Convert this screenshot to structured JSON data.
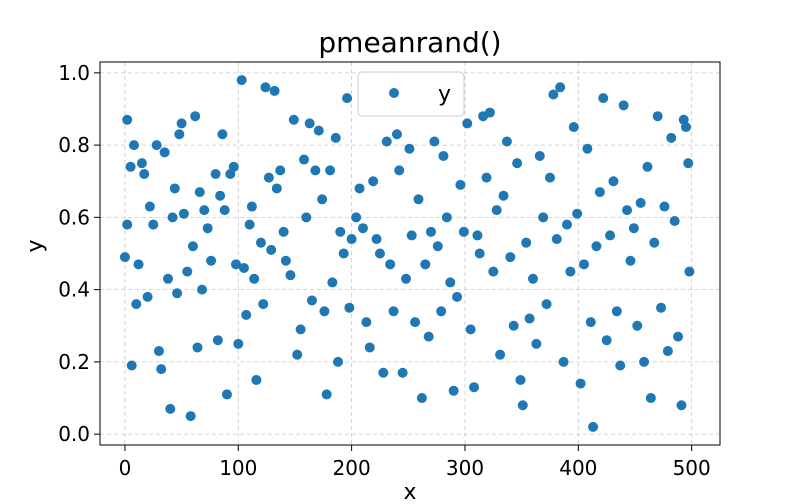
{
  "chart_data": {
    "type": "scatter",
    "title": "pmeanrand()",
    "xlabel": "x",
    "ylabel": "y",
    "xlim": [
      -22,
      525
    ],
    "ylim": [
      -0.03,
      1.03
    ],
    "xticks": [
      "0",
      "100",
      "200",
      "300",
      "400",
      "500"
    ],
    "yticks": [
      "0.0",
      "0.2",
      "0.4",
      "0.6",
      "0.8",
      "1.0"
    ],
    "grid": true,
    "legend_position": "top-center",
    "series": [
      {
        "name": "y",
        "color": "#1f77b4",
        "points": [
          [
            0,
            0.49
          ],
          [
            2,
            0.58
          ],
          [
            2,
            0.87
          ],
          [
            5,
            0.74
          ],
          [
            6,
            0.19
          ],
          [
            8,
            0.8
          ],
          [
            10,
            0.36
          ],
          [
            12,
            0.47
          ],
          [
            15,
            0.75
          ],
          [
            17,
            0.72
          ],
          [
            20,
            0.38
          ],
          [
            22,
            0.63
          ],
          [
            25,
            0.58
          ],
          [
            28,
            0.8
          ],
          [
            30,
            0.23
          ],
          [
            32,
            0.18
          ],
          [
            35,
            0.78
          ],
          [
            38,
            0.43
          ],
          [
            40,
            0.07
          ],
          [
            42,
            0.6
          ],
          [
            44,
            0.68
          ],
          [
            46,
            0.39
          ],
          [
            48,
            0.83
          ],
          [
            50,
            0.86
          ],
          [
            52,
            0.61
          ],
          [
            55,
            0.45
          ],
          [
            58,
            0.05
          ],
          [
            60,
            0.52
          ],
          [
            62,
            0.88
          ],
          [
            64,
            0.24
          ],
          [
            66,
            0.67
          ],
          [
            68,
            0.4
          ],
          [
            70,
            0.62
          ],
          [
            73,
            0.57
          ],
          [
            76,
            0.48
          ],
          [
            80,
            0.72
          ],
          [
            82,
            0.26
          ],
          [
            84,
            0.66
          ],
          [
            86,
            0.83
          ],
          [
            88,
            0.62
          ],
          [
            90,
            0.11
          ],
          [
            93,
            0.72
          ],
          [
            96,
            0.74
          ],
          [
            98,
            0.47
          ],
          [
            100,
            0.25
          ],
          [
            103,
            0.98
          ],
          [
            105,
            0.46
          ],
          [
            107,
            0.33
          ],
          [
            110,
            0.58
          ],
          [
            112,
            0.63
          ],
          [
            114,
            0.43
          ],
          [
            116,
            0.15
          ],
          [
            120,
            0.53
          ],
          [
            122,
            0.36
          ],
          [
            124,
            0.96
          ],
          [
            127,
            0.71
          ],
          [
            129,
            0.51
          ],
          [
            132,
            0.95
          ],
          [
            134,
            0.68
          ],
          [
            137,
            0.73
          ],
          [
            140,
            0.56
          ],
          [
            142,
            0.48
          ],
          [
            146,
            0.44
          ],
          [
            149,
            0.87
          ],
          [
            152,
            0.22
          ],
          [
            155,
            0.29
          ],
          [
            158,
            0.76
          ],
          [
            160,
            0.6
          ],
          [
            163,
            0.86
          ],
          [
            165,
            0.37
          ],
          [
            168,
            0.73
          ],
          [
            171,
            0.84
          ],
          [
            174,
            0.65
          ],
          [
            176,
            0.34
          ],
          [
            178,
            0.11
          ],
          [
            181,
            0.73
          ],
          [
            183,
            0.42
          ],
          [
            186,
            0.82
          ],
          [
            188,
            0.2
          ],
          [
            190,
            0.56
          ],
          [
            193,
            0.5
          ],
          [
            196,
            0.93
          ],
          [
            198,
            0.35
          ],
          [
            200,
            0.54
          ],
          [
            204,
            0.6
          ],
          [
            207,
            0.68
          ],
          [
            210,
            0.57
          ],
          [
            213,
            0.31
          ],
          [
            216,
            0.24
          ],
          [
            219,
            0.7
          ],
          [
            222,
            0.54
          ],
          [
            225,
            0.5
          ],
          [
            228,
            0.17
          ],
          [
            231,
            0.81
          ],
          [
            234,
            0.47
          ],
          [
            237,
            0.34
          ],
          [
            240,
            0.83
          ],
          [
            242,
            0.73
          ],
          [
            245,
            0.17
          ],
          [
            248,
            0.43
          ],
          [
            251,
            0.79
          ],
          [
            253,
            0.55
          ],
          [
            256,
            0.31
          ],
          [
            259,
            0.65
          ],
          [
            262,
            0.1
          ],
          [
            265,
            0.47
          ],
          [
            268,
            0.27
          ],
          [
            270,
            0.56
          ],
          [
            273,
            0.81
          ],
          [
            276,
            0.52
          ],
          [
            279,
            0.34
          ],
          [
            281,
            0.77
          ],
          [
            284,
            0.6
          ],
          [
            287,
            0.42
          ],
          [
            290,
            0.12
          ],
          [
            293,
            0.38
          ],
          [
            296,
            0.69
          ],
          [
            299,
            0.56
          ],
          [
            302,
            0.86
          ],
          [
            305,
            0.29
          ],
          [
            308,
            0.13
          ],
          [
            311,
            0.55
          ],
          [
            313,
            0.5
          ],
          [
            316,
            0.88
          ],
          [
            319,
            0.71
          ],
          [
            322,
            0.89
          ],
          [
            325,
            0.45
          ],
          [
            328,
            0.62
          ],
          [
            331,
            0.22
          ],
          [
            334,
            0.66
          ],
          [
            337,
            0.81
          ],
          [
            340,
            0.49
          ],
          [
            343,
            0.3
          ],
          [
            346,
            0.75
          ],
          [
            349,
            0.15
          ],
          [
            351,
            0.08
          ],
          [
            354,
            0.53
          ],
          [
            357,
            0.32
          ],
          [
            360,
            0.43
          ],
          [
            363,
            0.25
          ],
          [
            366,
            0.77
          ],
          [
            369,
            0.6
          ],
          [
            372,
            0.36
          ],
          [
            375,
            0.71
          ],
          [
            378,
            0.94
          ],
          [
            381,
            0.54
          ],
          [
            384,
            0.96
          ],
          [
            387,
            0.2
          ],
          [
            390,
            0.58
          ],
          [
            393,
            0.45
          ],
          [
            396,
            0.85
          ],
          [
            399,
            0.61
          ],
          [
            402,
            0.14
          ],
          [
            405,
            0.47
          ],
          [
            408,
            0.79
          ],
          [
            411,
            0.31
          ],
          [
            413,
            0.02
          ],
          [
            416,
            0.52
          ],
          [
            419,
            0.67
          ],
          [
            422,
            0.93
          ],
          [
            425,
            0.26
          ],
          [
            428,
            0.55
          ],
          [
            431,
            0.7
          ],
          [
            434,
            0.34
          ],
          [
            437,
            0.19
          ],
          [
            440,
            0.91
          ],
          [
            443,
            0.62
          ],
          [
            446,
            0.48
          ],
          [
            449,
            0.57
          ],
          [
            452,
            0.3
          ],
          [
            455,
            0.64
          ],
          [
            458,
            0.2
          ],
          [
            461,
            0.74
          ],
          [
            464,
            0.1
          ],
          [
            467,
            0.53
          ],
          [
            470,
            0.88
          ],
          [
            473,
            0.35
          ],
          [
            476,
            0.63
          ],
          [
            479,
            0.23
          ],
          [
            482,
            0.82
          ],
          [
            485,
            0.59
          ],
          [
            488,
            0.27
          ],
          [
            491,
            0.08
          ],
          [
            493,
            0.87
          ],
          [
            495,
            0.85
          ],
          [
            497,
            0.75
          ],
          [
            498,
            0.45
          ]
        ]
      }
    ]
  }
}
